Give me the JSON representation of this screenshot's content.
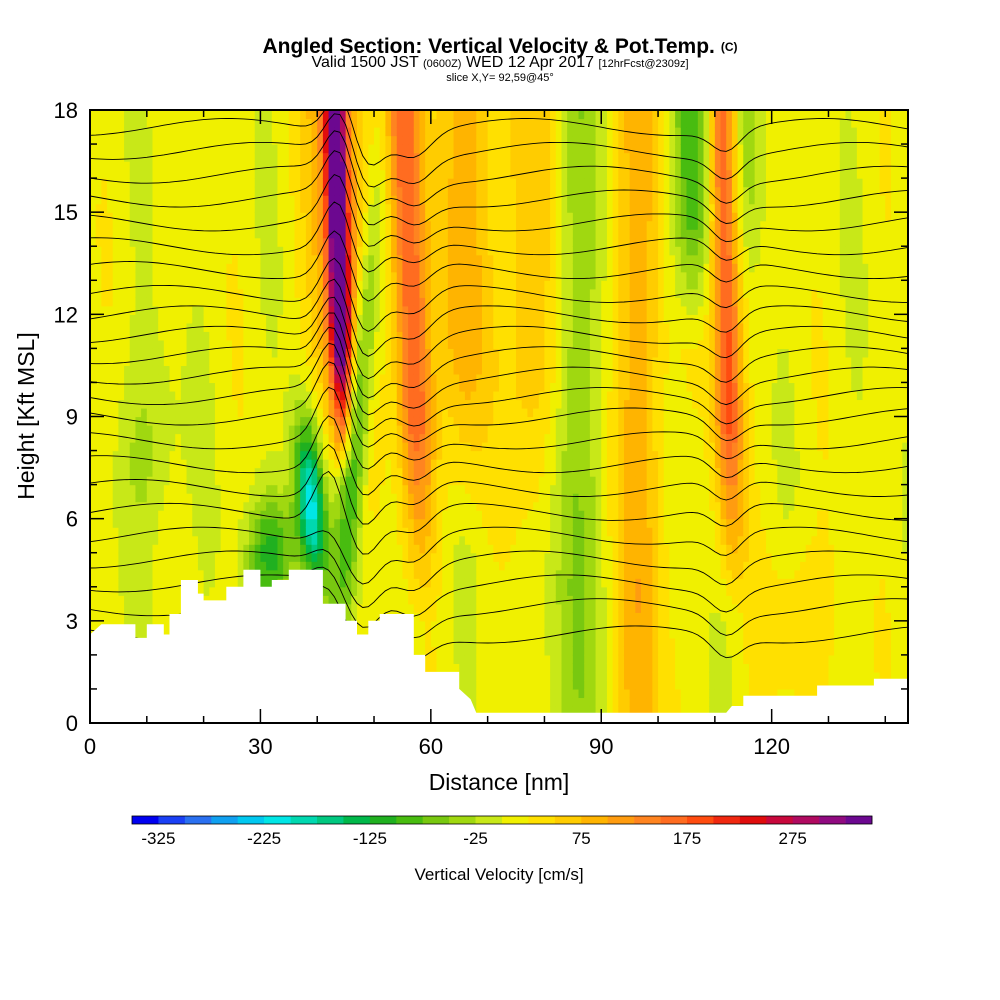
{
  "header": {
    "title": "Angled Section: Vertical Velocity & Pot.Temp.",
    "title_unit": "(C)",
    "valid_prefix": "Valid 1500 JST",
    "valid_utc": "(0600Z)",
    "valid_date": "WED 12 Apr 2017",
    "forecast": "[12hrFcst@2309z]",
    "slice": "slice X,Y= 92,59@45°"
  },
  "chart_data": {
    "type": "heatmap",
    "xlabel": "Distance [nm]",
    "ylabel": "Height [Kft MSL]",
    "xlim": [
      0,
      144
    ],
    "ylim": [
      0,
      18
    ],
    "x_ticks": [
      0,
      30,
      60,
      90,
      120
    ],
    "y_ticks": [
      0,
      3,
      6,
      9,
      12,
      15,
      18
    ],
    "colorbar": {
      "title": "Vertical Velocity [cm/s]",
      "tick_labels": [
        "-325",
        "-225",
        "-125",
        "-25",
        "75",
        "175",
        "275"
      ],
      "levels": [
        -350,
        -325,
        -300,
        -275,
        -250,
        -225,
        -200,
        -175,
        -150,
        -125,
        -100,
        -75,
        -50,
        -25,
        0,
        25,
        50,
        75,
        100,
        125,
        150,
        175,
        200,
        225,
        250,
        275,
        300,
        325,
        350
      ],
      "colors": [
        "#0000f0",
        "#1a40f5",
        "#2a70f0",
        "#10a0f0",
        "#00c8f0",
        "#00e6e6",
        "#00d8b0",
        "#00c880",
        "#00b84a",
        "#20b020",
        "#48bc10",
        "#78c810",
        "#a0d810",
        "#c8e818",
        "#f0f000",
        "#ffe000",
        "#ffcc00",
        "#ffb400",
        "#ff9c10",
        "#ff8420",
        "#ff6c20",
        "#ff4c10",
        "#f02810",
        "#e00c0c",
        "#c8083c",
        "#b00a60",
        "#900a80",
        "#6c0890"
      ]
    },
    "updrafts_cm_s": [
      {
        "x_nm": 44,
        "peak": 330
      },
      {
        "x_nm": 56,
        "peak": 190
      },
      {
        "x_nm": 112,
        "peak": 190
      }
    ],
    "downdrafts_cm_s": [
      {
        "x_nm": 39,
        "peak": -230
      },
      {
        "x_nm": 48,
        "peak": -180
      },
      {
        "x_nm": 106,
        "peak": -120
      }
    ]
  }
}
